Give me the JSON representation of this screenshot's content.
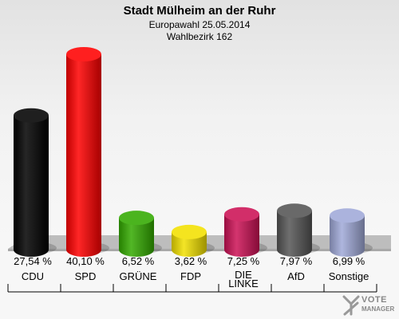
{
  "header": {
    "title": "Stadt Mülheim an der Ruhr",
    "subtitle": "Europawahl 25.05.2014",
    "district": "Wahlbezirk 162"
  },
  "logo": {
    "line1": "VOTE",
    "line2": "MANAGER"
  },
  "chart_data": {
    "type": "bar",
    "categories": [
      "CDU",
      "SPD",
      "GRÜNE",
      "FDP",
      "DIE LINKE",
      "AfD",
      "Sonstige"
    ],
    "category_lines": [
      [
        "CDU"
      ],
      [
        "SPD"
      ],
      [
        "GRÜNE"
      ],
      [
        "FDP"
      ],
      [
        "DIE",
        "LINKE"
      ],
      [
        "AfD"
      ],
      [
        "Sonstige"
      ]
    ],
    "values": [
      27.54,
      40.1,
      6.52,
      3.62,
      7.25,
      7.97,
      6.99
    ],
    "value_labels": [
      "27,54 %",
      "40,10 %",
      "6,52 %",
      "3,62 %",
      "7,25 %",
      "7,97 %",
      "6,99 %"
    ],
    "colors": [
      "#000000",
      "#ff0000",
      "#33aa00",
      "#f2e000",
      "#cc1155",
      "#555555",
      "#a0a9d8"
    ],
    "unit": "%",
    "ylim": [
      0,
      42
    ]
  }
}
